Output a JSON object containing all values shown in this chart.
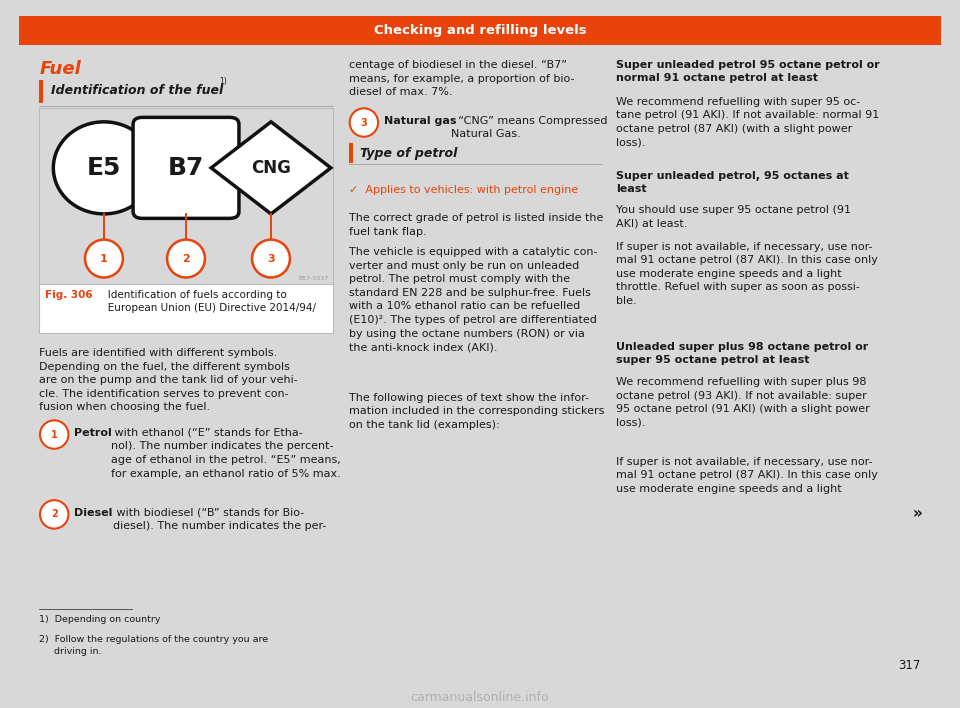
{
  "page_bg": "#d8d8d8",
  "content_bg": "#ffffff",
  "header_bg": "#e8430a",
  "header_text": "Checking and refilling levels",
  "header_text_color": "#ffffff",
  "fuel_title": "Fuel",
  "fuel_title_color": "#e8430a",
  "section1_title": "Identification of the fuel",
  "section1_superscript": "1)",
  "fig_label": "Fig. 306",
  "fig_label_color": "#e8430a",
  "fig_caption": "   Identification of fuels according to\n   European Union (EU) Directive 2014/94/",
  "fuel_box_bg": "#d8d8d8",
  "symbol_border": "#111111",
  "circle_label_color": "#e8430a",
  "image_code": "B57-0337",
  "para1_line1": "Fuels are identified with different symbols.",
  "para1_line2": "Depending on the fuel, the different symbols",
  "para1_line3": "are on the pump and the tank lid of your vehi-",
  "para1_line4": "cle. The identification serves to prevent con-",
  "para1_line5": "fusion when choosing the fuel.",
  "b1_bold": "Petrol",
  "b1_text": " with ethanol (“E” stands for Etha-\nnol). The number indicates the percent-\nage of ethanol in the petrol. “E5” means,\nfor example, an ethanol ratio of 5% max.",
  "b2_bold": "Diesel",
  "b2_text": " with biodiesel (“B” stands for Bio-\ndiesel). The number indicates the per-",
  "col2_cont": "centage of biodiesel in the diesel. “B7”\nmeans, for example, a proportion of bio-\ndiesel of max. 7%.",
  "b3_bold": "Natural gas",
  "b3_text": ": “CNG” means Compressed\nNatural Gas.",
  "sec2_title": "Type of petrol",
  "sec2_applies": "✓  Applies to vehicles: with petrol engine",
  "sec2_applies_color": "#e8430a",
  "c2p1": "The correct grade of petrol is listed inside the\nfuel tank flap.",
  "c2p2": "The vehicle is equipped with a catalytic con-\nverter and must only be run on unleaded\npetrol. The petrol must comply with the\nstandard EN 228 and be sulphur-free. Fuels\nwith a 10% ethanol ratio can be refuelled\n(E10)². The types of petrol are differentiated\nby using the octane numbers (RON) or via\nthe anti-knock index (AKI).",
  "c2p3": "The following pieces of text show the infor-\nmation included in the corresponding stickers\non the tank lid (examples):",
  "c3h1": "Super unleaded petrol 95 octane petrol or\nnormal 91 octane petrol at least",
  "c3p1": "We recommend refuelling with super 95 oc-\ntane petrol (91 AKI). If not available: normal 91\noctane petrol (87 AKI) (with a slight power\nloss).",
  "c3h2": "Super unleaded petrol, 95 octanes at\nleast",
  "c3p2": "You should use super 95 octane petrol (91\nAKI) at least.",
  "c3p3": "If super is not available, if necessary, use nor-\nmal 91 octane petrol (87 AKI). In this case only\nuse moderate engine speeds and a light\nthrottle. Refuel with super as soon as possi-\nble.",
  "c3h3": "Unleaded super plus 98 octane petrol or\nsuper 95 octane petrol at least",
  "c3p4": "We recommend refuelling with super plus 98\noctane petrol (93 AKI). If not available: super\n95 octane petrol (91 AKI) (with a slight power\nloss).",
  "c3p5": "If super is not available, if necessary, use nor-\nmal 91 octane petrol (87 AKI). In this case only\nuse moderate engine speeds and a light",
  "arrow": "»",
  "fn1": "1)  Depending on country",
  "fn2": "2)  Follow the regulations of the country you are\n     driving in.",
  "page_num": "317",
  "watermark": "carmanualsonline.info",
  "tc": "#1a1a1a",
  "fs": 8.0
}
